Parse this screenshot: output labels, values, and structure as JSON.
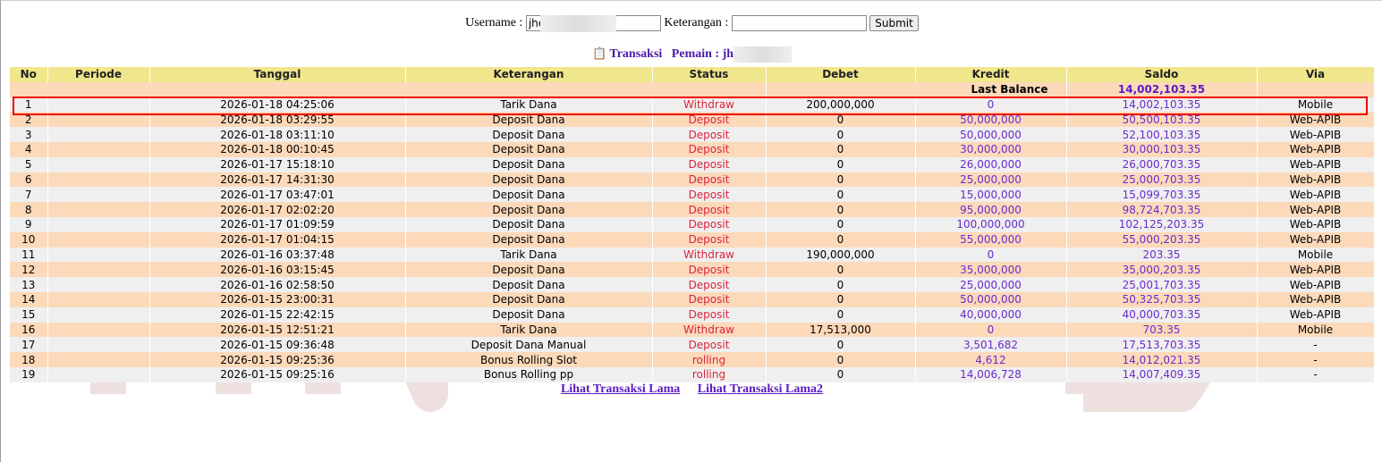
{
  "form": {
    "username_label": "Username :",
    "username_value": "jhe",
    "keterangan_label": "Keterangan :",
    "keterangan_value": "",
    "submit_label": "Submit"
  },
  "title": {
    "icon": "clipboard-icon",
    "transaksi": "Transaksi",
    "pemain_label": "Pemain : jh"
  },
  "table": {
    "headers": [
      "No",
      "Periode",
      "Tanggal",
      "Keterangan",
      "Status",
      "Debet",
      "Kredit",
      "Saldo",
      "Via"
    ],
    "last_balance_label": "Last Balance",
    "last_balance_value": "14,002,103.35",
    "rows": [
      [
        "1",
        "",
        "2026-01-18 04:25:06",
        "Tarik Dana",
        "Withdraw",
        "200,000,000",
        "0",
        "14,002,103.35",
        "Mobile"
      ],
      [
        "2",
        "",
        "2026-01-18 03:29:55",
        "Deposit Dana",
        "Deposit",
        "0",
        "50,000,000",
        "50,500,103.35",
        "Web-APIB"
      ],
      [
        "3",
        "",
        "2026-01-18 03:11:10",
        "Deposit Dana",
        "Deposit",
        "0",
        "50,000,000",
        "52,100,103.35",
        "Web-APIB"
      ],
      [
        "4",
        "",
        "2026-01-18 00:10:45",
        "Deposit Dana",
        "Deposit",
        "0",
        "30,000,000",
        "30,000,103.35",
        "Web-APIB"
      ],
      [
        "5",
        "",
        "2026-01-17 15:18:10",
        "Deposit Dana",
        "Deposit",
        "0",
        "26,000,000",
        "26,000,703.35",
        "Web-APIB"
      ],
      [
        "6",
        "",
        "2026-01-17 14:31:30",
        "Deposit Dana",
        "Deposit",
        "0",
        "25,000,000",
        "25,000,703.35",
        "Web-APIB"
      ],
      [
        "7",
        "",
        "2026-01-17 03:47:01",
        "Deposit Dana",
        "Deposit",
        "0",
        "15,000,000",
        "15,099,703.35",
        "Web-APIB"
      ],
      [
        "8",
        "",
        "2026-01-17 02:02:20",
        "Deposit Dana",
        "Deposit",
        "0",
        "95,000,000",
        "98,724,703.35",
        "Web-APIB"
      ],
      [
        "9",
        "",
        "2026-01-17 01:09:59",
        "Deposit Dana",
        "Deposit",
        "0",
        "100,000,000",
        "102,125,203.35",
        "Web-APIB"
      ],
      [
        "10",
        "",
        "2026-01-17 01:04:15",
        "Deposit Dana",
        "Deposit",
        "0",
        "55,000,000",
        "55,000,203.35",
        "Web-APIB"
      ],
      [
        "11",
        "",
        "2026-01-16 03:37:48",
        "Tarik Dana",
        "Withdraw",
        "190,000,000",
        "0",
        "203.35",
        "Mobile"
      ],
      [
        "12",
        "",
        "2026-01-16 03:15:45",
        "Deposit Dana",
        "Deposit",
        "0",
        "35,000,000",
        "35,000,203.35",
        "Web-APIB"
      ],
      [
        "13",
        "",
        "2026-01-16 02:58:50",
        "Deposit Dana",
        "Deposit",
        "0",
        "25,000,000",
        "25,001,703.35",
        "Web-APIB"
      ],
      [
        "14",
        "",
        "2026-01-15 23:00:31",
        "Deposit Dana",
        "Deposit",
        "0",
        "50,000,000",
        "50,325,703.35",
        "Web-APIB"
      ],
      [
        "15",
        "",
        "2026-01-15 22:42:15",
        "Deposit Dana",
        "Deposit",
        "0",
        "40,000,000",
        "40,000,703.35",
        "Web-APIB"
      ],
      [
        "16",
        "",
        "2026-01-15 12:51:21",
        "Tarik Dana",
        "Withdraw",
        "17,513,000",
        "0",
        "703.35",
        "Mobile"
      ],
      [
        "17",
        "",
        "2026-01-15 09:36:48",
        "Deposit Dana Manual",
        "Deposit",
        "0",
        "3,501,682",
        "17,513,703.35",
        "-"
      ],
      [
        "18",
        "",
        "2026-01-15 09:25:36",
        "Bonus Rolling Slot",
        "rolling",
        "0",
        "4,612",
        "14,012,021.35",
        "-"
      ],
      [
        "19",
        "",
        "2026-01-15 09:25:16",
        "Bonus Rolling pp",
        "rolling",
        "0",
        "14,006,728",
        "14,007,409.35",
        "-"
      ]
    ]
  },
  "links": [
    "Lihat Transaksi Lama",
    "Lihat Transaksi Lama2"
  ],
  "colors": {
    "header": "#f0e68c",
    "row_odd": "#efefef",
    "row_even": "#fcd9b9",
    "status": "#d7263d",
    "amount": "#6a2bd0",
    "highlight": "#ee0000"
  }
}
